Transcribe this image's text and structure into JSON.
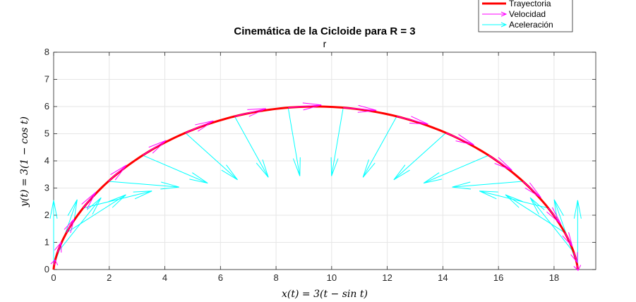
{
  "chart_data": {
    "type": "line",
    "title": "Cinemática de la Cicloide para R = 3",
    "subtitle": "r",
    "xlabel": "x(t) = 3(t − sin t)",
    "ylabel": "y(t) = 3(1 − cos t)",
    "xlim": [
      0,
      19.5
    ],
    "ylim": [
      0,
      8
    ],
    "xticks": [
      "0",
      "2",
      "4",
      "6",
      "8",
      "10",
      "12",
      "14",
      "16",
      "18"
    ],
    "yticks": [
      "0",
      "1",
      "2",
      "3",
      "4",
      "5",
      "6",
      "7",
      "8"
    ],
    "grid": true,
    "legend_position": "top-right (outside)",
    "R": 3,
    "series": [
      {
        "name": "Trayectoria",
        "color": "#ff0000",
        "param": "t",
        "t_range": [
          0,
          6.2832
        ]
      },
      {
        "name": "Velocidad",
        "color": "#ff00ff"
      },
      {
        "name": "Aceleración",
        "color": "#00ffff"
      }
    ],
    "vector_samples_t": [
      0,
      0.3307,
      0.6614,
      0.9921,
      1.3228,
      1.6535,
      1.9842,
      2.3149,
      2.6456,
      2.9763,
      3.307,
      3.6377,
      3.9684,
      4.2991,
      4.6298,
      4.9605,
      5.2912,
      5.6219,
      5.9526,
      6.2832
    ]
  }
}
